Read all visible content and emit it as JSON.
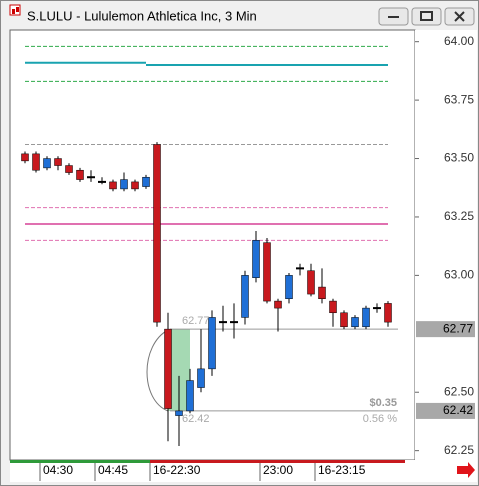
{
  "chart_data": {
    "type": "candlestick",
    "title": "S.LULU - Lululemon Athletica Inc, 3 Min",
    "categories": [
      null,
      null,
      "04:30",
      null,
      null,
      null,
      null,
      "04:45",
      null,
      null,
      null,
      null,
      "16-22:30",
      null,
      null,
      null,
      null,
      null,
      null,
      null,
      null,
      null,
      "23:00",
      null,
      null,
      null,
      null,
      "16-23:15",
      null,
      null,
      null,
      null,
      null,
      null
    ],
    "open": [
      63.52,
      63.52,
      63.46,
      63.5,
      63.47,
      63.45,
      63.42,
      63.4,
      63.4,
      63.37,
      63.4,
      63.38,
      63.56,
      62.77,
      62.4,
      62.42,
      62.52,
      62.6,
      62.8,
      62.8,
      62.82,
      62.99,
      63.14,
      62.89,
      62.9,
      63.03,
      63.02,
      62.95,
      62.89,
      62.84,
      62.78,
      62.78,
      62.86,
      62.88
    ],
    "high": [
      63.53,
      63.53,
      63.51,
      63.51,
      63.48,
      63.46,
      63.45,
      63.42,
      63.41,
      63.44,
      63.41,
      63.43,
      63.57,
      62.84,
      62.57,
      62.6,
      62.77,
      62.85,
      62.87,
      62.88,
      63.02,
      63.19,
      63.16,
      62.9,
      63.01,
      63.05,
      63.05,
      63.03,
      62.9,
      62.85,
      62.83,
      62.87,
      62.88,
      62.89
    ],
    "low": [
      63.48,
      63.44,
      63.45,
      63.45,
      63.43,
      63.4,
      63.4,
      63.39,
      63.36,
      63.36,
      63.36,
      63.37,
      62.78,
      62.29,
      62.27,
      62.41,
      62.5,
      62.57,
      62.76,
      62.73,
      62.79,
      62.97,
      62.88,
      62.76,
      62.88,
      63.0,
      62.91,
      62.88,
      62.78,
      62.77,
      62.77,
      62.77,
      62.84,
      62.78
    ],
    "close": [
      63.49,
      63.45,
      63.5,
      63.47,
      63.44,
      63.41,
      63.42,
      63.4,
      63.37,
      63.41,
      63.37,
      63.42,
      62.8,
      62.43,
      62.42,
      62.55,
      62.6,
      62.82,
      62.8,
      62.8,
      63.0,
      63.15,
      62.89,
      62.86,
      63.0,
      63.03,
      62.92,
      62.9,
      62.84,
      62.78,
      62.82,
      62.86,
      62.86,
      62.8
    ],
    "up_color": "#1f6fd6",
    "down_color": "#c8191e",
    "ylim": [
      62.21,
      64.05
    ],
    "yticks": [
      {
        "value": 62.25,
        "label": "62.25"
      },
      {
        "value": 62.5,
        "label": "62.50"
      },
      {
        "value": 63,
        "label": "63.00"
      },
      {
        "value": 63.25,
        "label": "63.25"
      },
      {
        "value": 63.5,
        "label": "63.50"
      },
      {
        "value": 63.75,
        "label": "63.75"
      },
      {
        "value": 64,
        "label": "64.00"
      }
    ],
    "reference_lines": [
      {
        "value": 63.98,
        "color": "#2eaa4a",
        "dash": true,
        "from": 0,
        "to": 33
      },
      {
        "value": 63.91,
        "color": "#19a3b0",
        "dash": false,
        "from": 0,
        "to": 11
      },
      {
        "value": 63.9,
        "color": "#19a3b0",
        "dash": false,
        "from": 11,
        "to": 33
      },
      {
        "value": 63.83,
        "color": "#2eaa4a",
        "dash": true,
        "from": 0,
        "to": 33
      },
      {
        "value": 63.56,
        "color": "#999999",
        "dash": true,
        "from": 0,
        "to": 33
      },
      {
        "value": 63.29,
        "color": "#e070b0",
        "dash": true,
        "from": 0,
        "to": 33
      },
      {
        "value": 63.22,
        "color": "#e070b0",
        "dash": false,
        "from": 0,
        "to": 33
      },
      {
        "value": 63.15,
        "color": "#e070b0",
        "dash": true,
        "from": 0,
        "to": 33
      }
    ],
    "price_markers": [
      {
        "value": 62.77,
        "label": "62.77"
      },
      {
        "value": 62.42,
        "label": "62.42"
      }
    ],
    "annotations": [
      "62.77",
      "62.42",
      "$0.35",
      "0.56 %"
    ]
  }
}
